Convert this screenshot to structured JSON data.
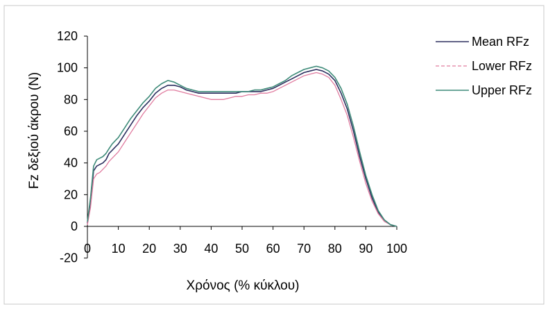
{
  "chart_data": {
    "type": "line",
    "title": "",
    "xlabel": "Χρόνος (% κύκλου)",
    "ylabel": "Fz δεξιού άκρου (N)",
    "xlim": [
      0,
      100
    ],
    "ylim": [
      -20,
      120
    ],
    "x_ticks": [
      "0",
      "10",
      "20",
      "30",
      "40",
      "50",
      "60",
      "70",
      "80",
      "90",
      "100"
    ],
    "y_ticks": [
      "-20",
      "0",
      "20",
      "40",
      "60",
      "80",
      "100",
      "120"
    ],
    "grid": false,
    "legend_position": "right",
    "x": [
      0,
      1,
      2,
      3,
      4,
      5,
      6,
      7,
      8,
      9,
      10,
      12,
      14,
      16,
      18,
      20,
      22,
      24,
      26,
      28,
      30,
      32,
      34,
      36,
      38,
      40,
      42,
      44,
      46,
      48,
      50,
      52,
      54,
      56,
      58,
      60,
      62,
      64,
      66,
      68,
      70,
      72,
      74,
      76,
      78,
      80,
      82,
      84,
      86,
      88,
      90,
      92,
      94,
      96,
      98,
      100
    ],
    "series": [
      {
        "name": "Mean RFz",
        "color": "#2b2e5e",
        "values": [
          2,
          15,
          35,
          38,
          39,
          40,
          42,
          46,
          48,
          50,
          52,
          58,
          64,
          70,
          75,
          79,
          84,
          87,
          89,
          89,
          88,
          86,
          85,
          84,
          84,
          84,
          84,
          84,
          84,
          84,
          85,
          85,
          85,
          85,
          86,
          87,
          89,
          91,
          93,
          95,
          97,
          98,
          99,
          98,
          96,
          92,
          84,
          74,
          60,
          44,
          30,
          18,
          9,
          4,
          1,
          0
        ]
      },
      {
        "name": "Lower RFz",
        "color": "#e07a9e",
        "values": [
          1,
          12,
          30,
          33,
          34,
          36,
          38,
          41,
          43,
          45,
          47,
          53,
          59,
          65,
          71,
          76,
          81,
          84,
          86,
          86,
          85,
          84,
          83,
          82,
          81,
          80,
          80,
          80,
          81,
          82,
          82,
          83,
          83,
          84,
          84,
          85,
          87,
          89,
          91,
          93,
          95,
          96,
          97,
          96,
          94,
          89,
          80,
          70,
          56,
          41,
          27,
          16,
          8,
          3,
          1,
          0
        ]
      },
      {
        "name": "Upper RFz",
        "color": "#3d8a78",
        "values": [
          3,
          18,
          38,
          42,
          43,
          44,
          46,
          49,
          52,
          54,
          56,
          62,
          68,
          73,
          78,
          82,
          87,
          90,
          92,
          91,
          89,
          87,
          86,
          85,
          85,
          85,
          85,
          85,
          85,
          85,
          85,
          85,
          86,
          86,
          87,
          88,
          90,
          92,
          95,
          97,
          99,
          100,
          101,
          100,
          98,
          94,
          87,
          77,
          63,
          47,
          32,
          20,
          10,
          4,
          1,
          0
        ]
      }
    ]
  }
}
